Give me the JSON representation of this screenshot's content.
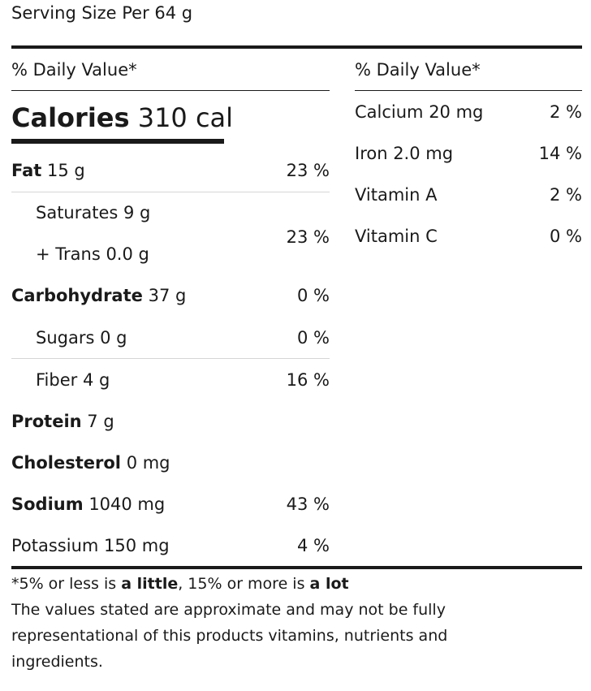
{
  "serving": "Serving Size Per 64 g",
  "left_header": "% Daily Value*",
  "right_header": "% Daily Value*",
  "calories": {
    "label": "Calories",
    "value": "310 cal"
  },
  "nutrients": {
    "fat": {
      "label": "Fat",
      "amount": "15 g",
      "dv": "23 %"
    },
    "saturates": {
      "label": "Saturates 9 g"
    },
    "trans": {
      "label": "+ Trans 0.0 g"
    },
    "sat_trans_dv": "23 %",
    "carbohydrate": {
      "label": "Carbohydrate",
      "amount": "37 g",
      "dv": "0 %"
    },
    "sugars": {
      "label": "Sugars 0 g",
      "dv": "0 %"
    },
    "fiber": {
      "label": "Fiber 4 g",
      "dv": "16 %"
    },
    "protein": {
      "label": "Protein",
      "amount": "7 g"
    },
    "cholesterol": {
      "label": "Cholesterol",
      "amount": "0 mg"
    },
    "sodium": {
      "label": "Sodium",
      "amount": "1040 mg",
      "dv": "43 %"
    },
    "potassium": {
      "label": "Potassium 150 mg",
      "dv": "4 %"
    }
  },
  "vitamins": [
    {
      "label": "Calcium 20 mg",
      "dv": "2 %"
    },
    {
      "label": "Iron 2.0 mg",
      "dv": "14 %"
    },
    {
      "label": "Vitamin A",
      "dv": "2 %"
    },
    {
      "label": "Vitamin C",
      "dv": "0 %"
    }
  ],
  "footnote": {
    "prefix": "*5% or less is ",
    "little": "a little",
    "middle": ", 15% or more is ",
    "lot": "a lot",
    "disclaimer_line1": "The values stated are approximate and may not be fully",
    "disclaimer_line2": "representational of this products vitamins, nutrients and",
    "disclaimer_line3": "ingredients."
  }
}
